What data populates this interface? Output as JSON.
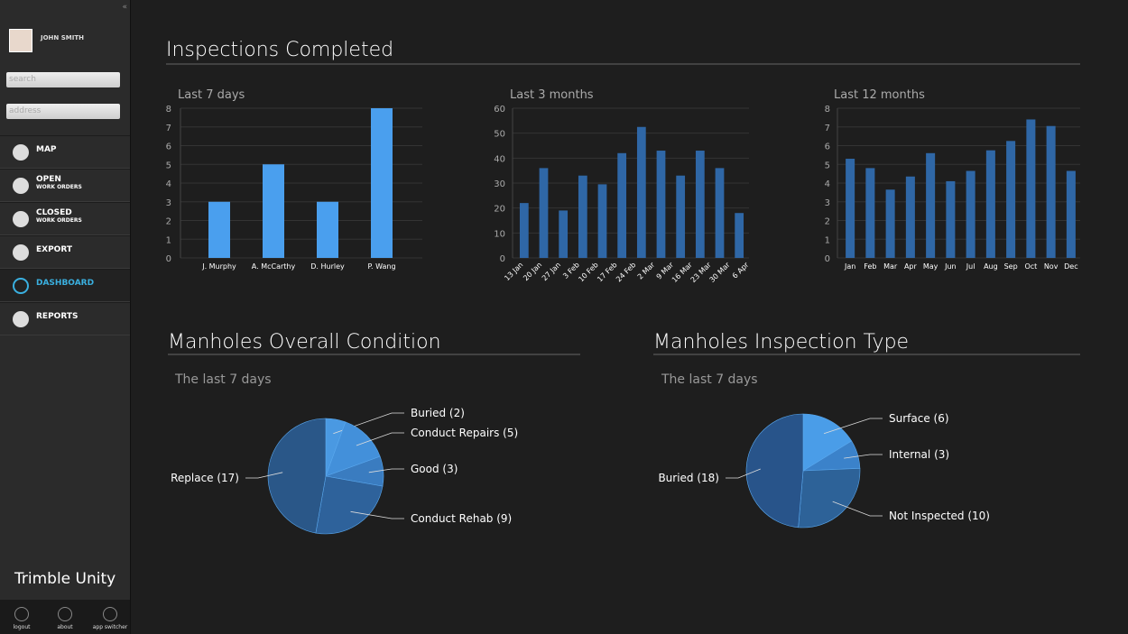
{
  "sidebar": {
    "user": "JOHN SMITH",
    "search_placeholder": "search",
    "address_placeholder": "address",
    "menu": [
      {
        "label": "MAP"
      },
      {
        "label": "OPEN",
        "sublabel": "WORK ORDERS"
      },
      {
        "label": "CLOSED",
        "sublabel": "WORK ORDERS"
      },
      {
        "label": "EXPORT"
      },
      {
        "label": "DASHBOARD"
      },
      {
        "label": "REPORTS"
      }
    ],
    "brand": "Trimble Unity",
    "footer": [
      "logout",
      "about",
      "app switcher"
    ]
  },
  "heading": "Inspections Completed",
  "chart_data": [
    {
      "type": "bar",
      "title": "Last 7 days",
      "categories": [
        "J. Murphy",
        "A. McCarthy",
        "D. Hurley",
        "P. Wang"
      ],
      "values": [
        3,
        5,
        3,
        8
      ],
      "color": "#4a9fee",
      "ylim": [
        0,
        8
      ],
      "yticks": [
        0,
        1,
        2,
        3,
        4,
        5,
        6,
        7,
        8
      ],
      "grid": true
    },
    {
      "type": "bar",
      "title": "Last 3 months",
      "categories": [
        "13 Jan",
        "20 Jan",
        "27 Jan",
        "3 Feb",
        "10 Feb",
        "17 Feb",
        "24 Feb",
        "2 Mar",
        "9 Mar",
        "16 Mar",
        "23 Mar",
        "30 Mar",
        "6 Apr"
      ],
      "values": [
        22,
        36,
        19,
        33,
        29.5,
        42,
        52.5,
        43,
        33,
        43,
        36,
        18,
        null
      ],
      "color": "#2f67a6",
      "ylim": [
        0,
        60
      ],
      "yticks": [
        0,
        10,
        20,
        30,
        40,
        50,
        60
      ],
      "grid": true
    },
    {
      "type": "bar",
      "title": "Last 12 months",
      "categories": [
        "Jan",
        "Feb",
        "Mar",
        "Apr",
        "May",
        "Jun",
        "Jul",
        "Aug",
        "Sep",
        "Oct",
        "Nov",
        "Dec"
      ],
      "values": [
        5.3,
        4.8,
        3.65,
        4.35,
        5.6,
        4.1,
        4.65,
        5.75,
        6.25,
        7.4,
        7.05,
        4.65
      ],
      "color": "#2f67a6",
      "ylim": [
        0,
        8
      ],
      "yticks": [
        0,
        1,
        2,
        3,
        4,
        5,
        6,
        7,
        8
      ],
      "grid": true
    },
    {
      "type": "pie",
      "title": "Manholes Overall Condition",
      "subtitle": "The last 7 days",
      "values": [
        2,
        5,
        3,
        9,
        17
      ],
      "value_labels": [
        "Buried (2)",
        "Conduct Repairs (5)",
        "Good (3)",
        "Conduct Rehab (9)",
        "Replace (17)"
      ],
      "colors": [
        "#4a99e2",
        "#4390da",
        "#3a7cc0",
        "#2e629b",
        "#2a5788"
      ]
    },
    {
      "type": "pie",
      "title": "Manholes Inspection Type",
      "subtitle": "The last 7 days",
      "values": [
        6,
        3,
        10,
        18
      ],
      "value_labels": [
        "Surface (6)",
        "Internal (3)",
        "Not Inspected (10)",
        "Buried (18)"
      ],
      "colors": [
        "#4a9de8",
        "#3b82ca",
        "#2d6298",
        "#28548a"
      ]
    }
  ]
}
